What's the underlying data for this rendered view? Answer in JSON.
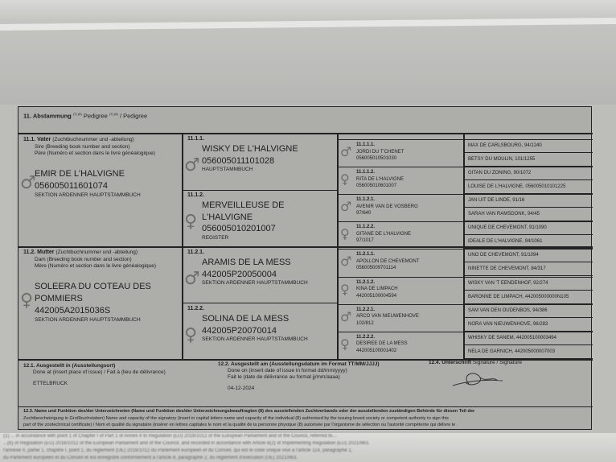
{
  "header": {
    "title": "11. Abstammung",
    "sup": "(7) (8)",
    "en": "Pedigree",
    "fr": "/ Pedigree"
  },
  "sire": {
    "label": "11.1. Vater",
    "de": "(Zuchtbuchnummer und -abteilung)",
    "en": "Sire (Breeding book number and section)",
    "fr": "Père (Numéro et section dans le livre généalogique)",
    "name": "EMIR DE L'HALVIGNE",
    "number": "056005011601074",
    "section": "SEKTION ARDENNER HAUPTSTAMMBUCH"
  },
  "dam": {
    "label": "11.2. Mutter",
    "de": "(Zuchtbuchnummer und -abteilung)",
    "en": "Dam (Breeding book number and section)",
    "fr": "Mère (Numéro et section dans le livre généalogique)",
    "name": "SOLEERA DU COTEAU DES POMMIERS",
    "number": "442005A2015036S",
    "section": "SEKTION ARDENNER HAUPTSTAMMBUCH"
  },
  "grandparents": [
    {
      "id": "11.1.1.",
      "name": "WISKY DE L'HALVIGNE",
      "number": "056005011101028",
      "section": "HAUPTSTAMMBUCH",
      "sex": "male"
    },
    {
      "id": "11.1.2.",
      "name": "MERVEILLEUSE DE L'HALVIGNE",
      "number": "056005010201007",
      "section": "REGISTER",
      "sex": "female"
    },
    {
      "id": "11.2.1.",
      "name": "ARAMIS DE LA MESS",
      "number": "442005P20050004",
      "section": "SEKTION ARDENNER HAUPTSTAMMBUCH",
      "sex": "male"
    },
    {
      "id": "11.2.2.",
      "name": "SOLINA DE LA MESS",
      "number": "442005P20070014",
      "section": "SEKTION ARDENNER HAUPTSTAMMBUCH",
      "sex": "female"
    }
  ],
  "great_grandparents": [
    {
      "id": "11.1.1.1.",
      "name": "JORDI DU T'CHENET",
      "number": "056005010501030",
      "sex": "male"
    },
    {
      "id": "11.1.1.2.",
      "name": "RITA DE L'HALVIGNE",
      "number": "056005010601007",
      "sex": "female"
    },
    {
      "id": "11.1.2.1.",
      "name": "AVENIR VAN DE VOSBERG",
      "number": "97/640",
      "sex": "male"
    },
    {
      "id": "11.1.2.2.",
      "name": "GITANE DE L'HALVIGNE",
      "number": "97/1017",
      "sex": "female"
    },
    {
      "id": "11.2.1.1.",
      "name": "APOLLON DE CHEVEMONT",
      "number": "056005009701114",
      "sex": "male"
    },
    {
      "id": "11.2.1.2.",
      "name": "KINA DE LIMPACH",
      "number": "442005100004594",
      "sex": "female"
    },
    {
      "id": "11.2.2.1.",
      "name": "ARCO VAN NIEUWENHOVE",
      "number": "102/812",
      "sex": "male"
    },
    {
      "id": "11.2.2.2.",
      "name": "DESIREE DE LA MESS",
      "number": "442005100001402",
      "sex": "female"
    }
  ],
  "great_great": [
    "MAX DE CARLSBOURG, 94/1240",
    "BETSY DU MOULIN, 101/1255",
    "GITAN DU ZONING, 90/1072",
    "LOUISE DE L'HALVIGNE, 056005010101225",
    "JAN UIT DE LINDE, 91/16",
    "SARAH VAN RAMSDONK, 94/45",
    "UNIQUE DE CHEVEMONT, 91/1090",
    "IDEALE DE L'HALVIGNE, 94/1061",
    "UNO DE CHEVEMONT, 91/1094",
    "NINETTE DE CHEVEMONT, 84/317",
    "WISKY VAN 'T EENDENHOF, 92/274",
    "BARONNE DE LIMPACH, 442005000000N105",
    "SAM VAN DEN OUDENBOS, 94/386",
    "NORA VAN NIEUWENHOVE, 96/283",
    "WHISKY DE SANEM, 442005100003494",
    "NELA DE GARNICH, 442005000007003"
  ],
  "issue": {
    "place_label": "12.1. Ausgestellt in (Ausstellungsort)",
    "place_sub": "Done at (insert place of issue) / Fait à (lieu de délivrance)",
    "place": "ETTELBRUCK",
    "date_label": "12.2. Ausgestellt am (Ausstellungsdatum im Format TT/MM/JJJJ)",
    "date_sub1": "Done on (insert date of issue in format dd/mm/yyyy)",
    "date_sub2": "Fait le (date de délivrance au format jj/mm/aaaa)",
    "date": "04-12-2024",
    "sig_label": "12.4. Unterschrift",
    "sig_sub": "Signature / Signature"
  },
  "signatory": {
    "line1": "12.3. Name und Funktion des/der Unterzeichneten (Name und Funktion des/der Unterzeichnungsbeauftragten (8) des ausstellenden Zuchtverbands oder der ausstellenden zuständigen Behörde für diesen Teil der",
    "line2": "Zuchtbescheinigung in Großbuchstaben) Name and capacity of the signatory (insert in capital letters name and capacity of the individual (8) authorised by the issuing breed society or competent authority to sign this",
    "line3": "part of the zootechnical certificate) / Nom et qualité du signataire (insérer en lettres capitales le nom et la qualité de la personne physique (8) autorisée par l'organisme de sélection ou l'autorité compétente qui délivre le"
  },
  "footnote": [
    "(1) ... in accordance with point 1 of Chapter I of Part 1 of Annex II to Regulation (EU) 2016/1012 of the European Parliament and of the Council, referred to...",
    "...(b) of Regulation (EU) 2016/1012 of the European Parliament and of the Council, and recorded in accordance with Article 8(2) of Implementing Regulation (EU) 2021/963.",
    "l'annexe II, partie 1, chapitre I, point 1, du règlement (UE) 2016/1012 du Parlement européen et du Conseil, qui est le code unique visé à l'article 114, paragraphe 1,",
    "du Parlement européen et du Conseil et est enregistré conformément à l'article 8, paragraphe 2, du règlement d'exécution (UE) 2021/963."
  ],
  "symbols": {
    "male": "♂",
    "female": "♀"
  }
}
